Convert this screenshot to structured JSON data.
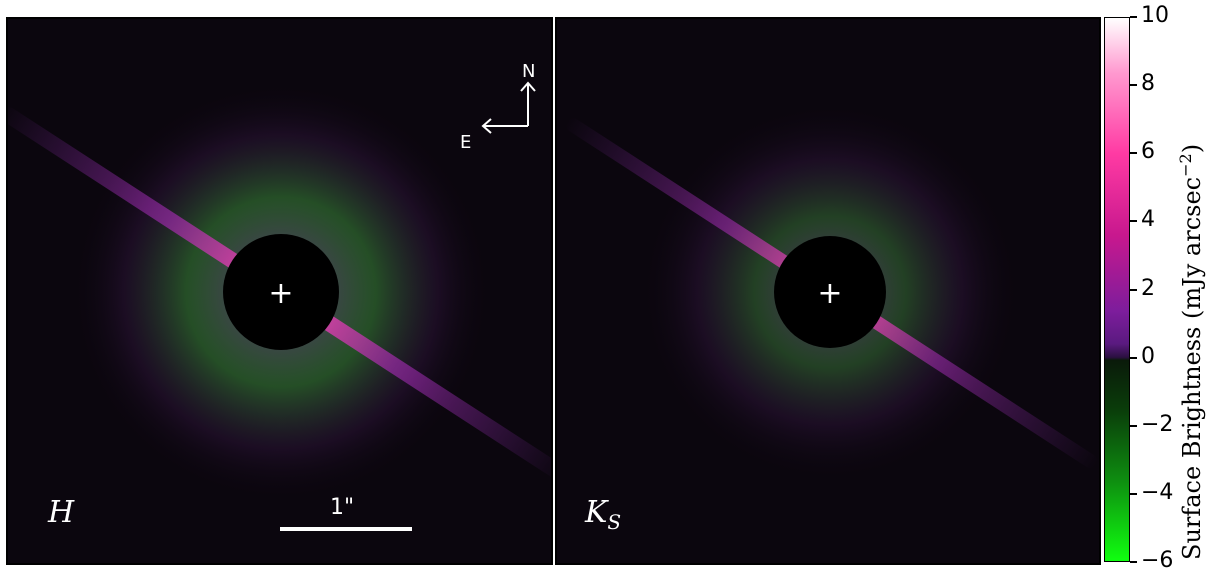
{
  "panels": [
    {
      "band": "H",
      "scalebar_label": "1\"",
      "compass": {
        "north": "N",
        "east": "E"
      }
    },
    {
      "band": "K",
      "band_sub": "S"
    }
  ],
  "colorbar": {
    "title": "Surface Brightness (mJy arcsec",
    "title_exp": "−2",
    "title_close": ")",
    "ticks": [
      "10",
      "8",
      "6",
      "4",
      "2",
      "0",
      "−2",
      "−4",
      "−6"
    ],
    "colors": {
      "max": "#ffffff",
      "positive": "#ff3aa3",
      "zero": "#2a1040",
      "negative": "#10ff10"
    }
  },
  "center_marker": "+"
}
